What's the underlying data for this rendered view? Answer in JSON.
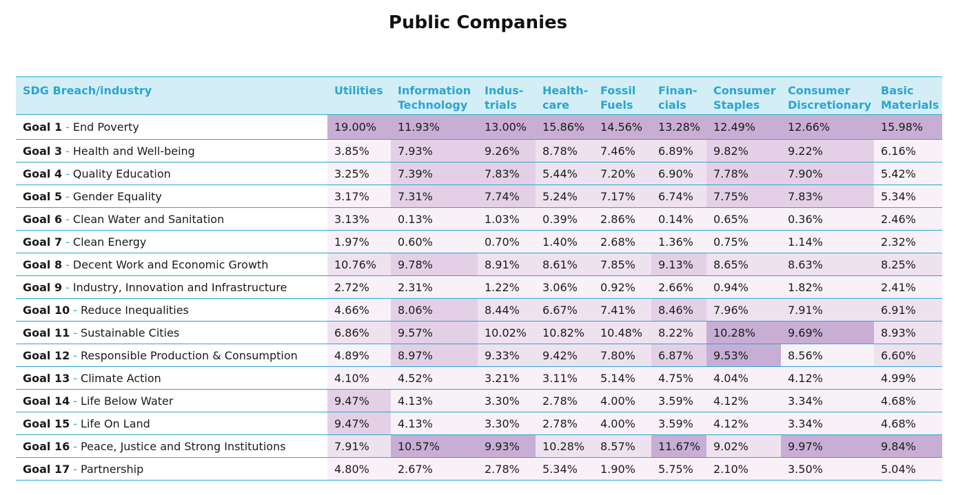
{
  "title": "Public Companies",
  "chart_data": {
    "type": "table",
    "title": "Public Companies",
    "row_header": "SDG Breach/industry",
    "columns": [
      "Utilities",
      "Information\nTechnology",
      "Indus-\ntrials",
      "Health-\ncare",
      "Fossil\nFuels",
      "Finan-\ncials",
      "Consumer\nStaples",
      "Consumer\nDiscretionary",
      "Basic\nMaterials"
    ],
    "rows": [
      {
        "goal": "Goal 1",
        "name": "End Poverty",
        "values": [
          "19.00%",
          "11.93%",
          "13.00%",
          "15.86%",
          "14.56%",
          "13.28%",
          "12.49%",
          "12.66%",
          "15.98%"
        ],
        "shades": [
          3,
          3,
          3,
          3,
          3,
          3,
          3,
          3,
          3
        ]
      },
      {
        "goal": "Goal 3",
        "name": "Health and Well-being",
        "values": [
          "3.85%",
          "7.93%",
          "9.26%",
          "8.78%",
          "7.46%",
          "6.89%",
          "9.82%",
          "9.22%",
          "6.16%"
        ],
        "shades": [
          0,
          2,
          2,
          1,
          1,
          1,
          2,
          2,
          0
        ]
      },
      {
        "goal": "Goal 4",
        "name": "Quality Education",
        "values": [
          "3.25%",
          "7.39%",
          "7.83%",
          "5.44%",
          "7.20%",
          "6.90%",
          "7.78%",
          "7.90%",
          "5.42%"
        ],
        "shades": [
          0,
          2,
          2,
          1,
          1,
          1,
          2,
          2,
          0
        ]
      },
      {
        "goal": "Goal 5",
        "name": "Gender Equality",
        "values": [
          "3.17%",
          "7.31%",
          "7.74%",
          "5.24%",
          "7.17%",
          "6.74%",
          "7.75%",
          "7.83%",
          "5.34%"
        ],
        "shades": [
          0,
          2,
          2,
          1,
          1,
          1,
          2,
          2,
          0
        ]
      },
      {
        "goal": "Goal 6",
        "name": "Clean Water and Sanitation",
        "values": [
          "3.13%",
          "0.13%",
          "1.03%",
          "0.39%",
          "2.86%",
          "0.14%",
          "0.65%",
          "0.36%",
          "2.46%"
        ],
        "shades": [
          0,
          0,
          0,
          0,
          0,
          0,
          0,
          0,
          0
        ]
      },
      {
        "goal": "Goal 7",
        "name": "Clean Energy",
        "values": [
          "1.97%",
          "0.60%",
          "0.70%",
          "1.40%",
          "2.68%",
          "1.36%",
          "0.75%",
          "1.14%",
          "2.32%"
        ],
        "shades": [
          0,
          0,
          0,
          0,
          0,
          0,
          0,
          0,
          0
        ]
      },
      {
        "goal": "Goal 8",
        "name": "Decent Work and Economic Growth",
        "values": [
          "10.76%",
          "9.78%",
          "8.91%",
          "8.61%",
          "7.85%",
          "9.13%",
          "8.65%",
          "8.63%",
          "8.25%"
        ],
        "shades": [
          1,
          2,
          1,
          1,
          1,
          2,
          1,
          1,
          1
        ]
      },
      {
        "goal": "Goal 9",
        "name": "Industry, Innovation and Infrastructure",
        "values": [
          "2.72%",
          "2.31%",
          "1.22%",
          "3.06%",
          "0.92%",
          "2.66%",
          "0.94%",
          "1.82%",
          "2.41%"
        ],
        "shades": [
          0,
          0,
          0,
          0,
          0,
          0,
          0,
          0,
          0
        ]
      },
      {
        "goal": "Goal 10",
        "name": "Reduce Inequalities",
        "values": [
          "4.66%",
          "8.06%",
          "8.44%",
          "6.67%",
          "7.41%",
          "8.46%",
          "7.96%",
          "7.91%",
          "6.91%"
        ],
        "shades": [
          0,
          2,
          1,
          1,
          1,
          2,
          1,
          1,
          1
        ]
      },
      {
        "goal": "Goal 11",
        "name": "Sustainable Cities",
        "values": [
          "6.86%",
          "9.57%",
          "10.02%",
          "10.82%",
          "10.48%",
          "8.22%",
          "10.28%",
          "9.69%",
          "8.93%"
        ],
        "shades": [
          1,
          2,
          1,
          1,
          1,
          1,
          3,
          3,
          1
        ]
      },
      {
        "goal": "Goal 12",
        "name": "Responsible Production & Consumption",
        "values": [
          "4.89%",
          "8.97%",
          "9.33%",
          "9.42%",
          "7.80%",
          "6.87%",
          "9.53%",
          "8.56%",
          "6.60%"
        ],
        "shades": [
          0,
          2,
          1,
          1,
          1,
          2,
          3,
          0,
          1
        ]
      },
      {
        "goal": "Goal 13",
        "name": "Climate Action",
        "values": [
          "4.10%",
          "4.52%",
          "3.21%",
          "3.11%",
          "5.14%",
          "4.75%",
          "4.04%",
          "4.12%",
          "4.99%"
        ],
        "shades": [
          0,
          0,
          0,
          0,
          0,
          0,
          0,
          0,
          0
        ]
      },
      {
        "goal": "Goal 14",
        "name": "Life Below Water",
        "values": [
          "9.47%",
          "4.13%",
          "3.30%",
          "2.78%",
          "4.00%",
          "3.59%",
          "4.12%",
          "3.34%",
          "4.68%"
        ],
        "shades": [
          2,
          0,
          0,
          0,
          0,
          0,
          0,
          0,
          0
        ]
      },
      {
        "goal": "Goal 15",
        "name": "Life On Land",
        "values": [
          "9.47%",
          "4.13%",
          "3.30%",
          "2.78%",
          "4.00%",
          "3.59%",
          "4.12%",
          "3.34%",
          "4.68%"
        ],
        "shades": [
          2,
          0,
          0,
          0,
          0,
          0,
          0,
          0,
          0
        ]
      },
      {
        "goal": "Goal 16",
        "name": "Peace, Justice and Strong Institutions",
        "values": [
          "7.91%",
          "10.57%",
          "9.93%",
          "10.28%",
          "8.57%",
          "11.67%",
          "9.02%",
          "9.97%",
          "9.84%"
        ],
        "shades": [
          1,
          3,
          3,
          1,
          1,
          3,
          1,
          3,
          3
        ]
      },
      {
        "goal": "Goal 17",
        "name": "Partnership",
        "values": [
          "4.80%",
          "2.67%",
          "2.78%",
          "5.34%",
          "1.90%",
          "5.75%",
          "2.10%",
          "3.50%",
          "5.04%"
        ],
        "shades": [
          0,
          0,
          0,
          0,
          0,
          0,
          0,
          0,
          0
        ]
      }
    ],
    "shade_colors": [
      "#f8f1f8",
      "#efe2ef",
      "#e3d0e6",
      "#c8aed4"
    ]
  }
}
